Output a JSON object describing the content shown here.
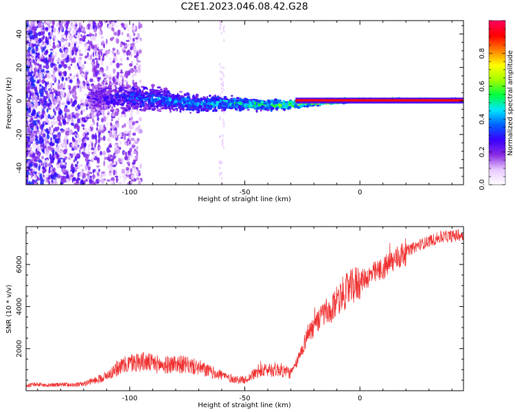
{
  "figure_title": "C2E1.2023.046.08.42.G28",
  "chart_data": [
    {
      "type": "heatmap",
      "title": "C2E1.2023.046.08.42.G28",
      "xlabel": "Height of straight line (km)",
      "ylabel": "Frequency (Hz)",
      "xlim": [
        -145,
        45
      ],
      "ylim": [
        -50,
        48
      ],
      "x_ticks": [
        -100,
        -50,
        0
      ],
      "y_ticks": [
        -40,
        -20,
        0,
        20,
        40
      ],
      "grid": false,
      "colorbar": {
        "label": "Normalized spectral amplitude",
        "range": [
          0,
          1
        ],
        "ticks": [
          0.0,
          0.2,
          0.4,
          0.6,
          0.8
        ],
        "colormap": [
          "#ffffff",
          "#e8c8ff",
          "#8a2be2",
          "#3a00ff",
          "#0060ff",
          "#00e5ff",
          "#00ff40",
          "#a0ff00",
          "#ffff00",
          "#ff8000",
          "#ff0000",
          "#ff0060"
        ]
      },
      "signal_track": [
        {
          "x": -115,
          "f_center": 2.0,
          "f_spread": 6.0,
          "amp": 0.25
        },
        {
          "x": -100,
          "f_center": 2.0,
          "f_spread": 5.5,
          "amp": 0.35
        },
        {
          "x": -90,
          "f_center": 1.5,
          "f_spread": 4.5,
          "amp": 0.4
        },
        {
          "x": -80,
          "f_center": 0.0,
          "f_spread": 3.5,
          "amp": 0.45
        },
        {
          "x": -70,
          "f_center": -2.0,
          "f_spread": 3.0,
          "amp": 0.45
        },
        {
          "x": -60,
          "f_center": -1.0,
          "f_spread": 2.5,
          "amp": 0.5
        },
        {
          "x": -50,
          "f_center": -2.0,
          "f_spread": 2.0,
          "amp": 0.55
        },
        {
          "x": -40,
          "f_center": -2.5,
          "f_spread": 1.8,
          "amp": 0.6
        },
        {
          "x": -30,
          "f_center": -2.0,
          "f_spread": 1.4,
          "amp": 0.7
        },
        {
          "x": -20,
          "f_center": -1.0,
          "f_spread": 1.0,
          "amp": 0.8
        },
        {
          "x": -10,
          "f_center": 0.0,
          "f_spread": 0.8,
          "amp": 0.9
        },
        {
          "x": 0,
          "f_center": 0.5,
          "f_spread": 0.6,
          "amp": 0.95
        },
        {
          "x": 20,
          "f_center": 0.5,
          "f_spread": 0.5,
          "amp": 0.95
        },
        {
          "x": 45,
          "f_center": 0.5,
          "f_spread": 0.5,
          "amp": 0.95
        }
      ]
    },
    {
      "type": "line",
      "xlabel": "Height of straight line (km)",
      "ylabel": "SNR (10 * v/v)",
      "xlim": [
        -145,
        45
      ],
      "ylim": [
        0,
        7800
      ],
      "x_ticks": [
        -100,
        -50,
        0
      ],
      "y_ticks": [
        2000,
        4000,
        6000
      ],
      "grid": false,
      "series": [
        {
          "color": "#f03030",
          "x": [
            -145,
            -140,
            -135,
            -130,
            -125,
            -120,
            -115,
            -110,
            -105,
            -100,
            -95,
            -90,
            -85,
            -80,
            -75,
            -70,
            -65,
            -60,
            -55,
            -50,
            -45,
            -40,
            -35,
            -30,
            -28,
            -25,
            -22,
            -20,
            -18,
            -15,
            -13,
            -10,
            -5,
            0,
            5,
            10,
            15,
            20,
            25,
            30,
            35,
            40,
            45
          ],
          "y": [
            250,
            300,
            250,
            300,
            280,
            320,
            500,
            700,
            1100,
            1300,
            1400,
            1300,
            1200,
            1300,
            1200,
            1100,
            900,
            750,
            550,
            500,
            850,
            1000,
            1000,
            850,
            1200,
            2000,
            2900,
            3000,
            3300,
            3800,
            3500,
            4400,
            4800,
            5200,
            5500,
            5800,
            6200,
            6600,
            6900,
            7100,
            7300,
            7350,
            7400
          ]
        }
      ]
    }
  ]
}
